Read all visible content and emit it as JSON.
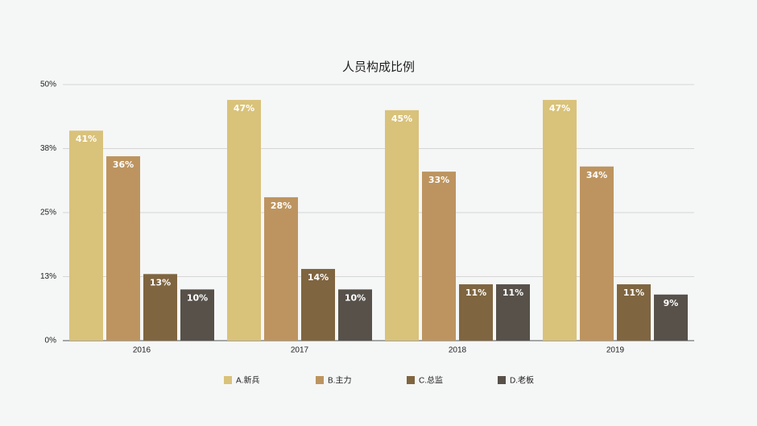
{
  "chart_data": {
    "type": "bar",
    "title": "人员构成比例",
    "categories": [
      "2016",
      "2017",
      "2018",
      "2019"
    ],
    "series": [
      {
        "name": "A.新兵",
        "color": "#d9c27a",
        "values": [
          41,
          47,
          45,
          47
        ],
        "value_labels": [
          "41%",
          "47%",
          "45%",
          "47%"
        ]
      },
      {
        "name": "B.主力",
        "color": "#bd945f",
        "values": [
          36,
          28,
          33,
          34
        ],
        "value_labels": [
          "36%",
          "28%",
          "33%",
          "34%"
        ]
      },
      {
        "name": "C.总监",
        "color": "#7f6540",
        "values": [
          13,
          14,
          11,
          11
        ],
        "value_labels": [
          "13%",
          "14%",
          "11%",
          "11%"
        ]
      },
      {
        "name": "D.老板",
        "color": "#57514a",
        "values": [
          10,
          10,
          11,
          9
        ],
        "value_labels": [
          "10%",
          "10%",
          "11%",
          "9%"
        ]
      }
    ],
    "ylim": [
      0,
      50
    ],
    "yticks": [
      {
        "value": 0,
        "label": "0%"
      },
      {
        "value": 12.5,
        "label": "13%"
      },
      {
        "value": 25,
        "label": "25%"
      },
      {
        "value": 37.5,
        "label": "38%"
      },
      {
        "value": 50,
        "label": "50%"
      }
    ],
    "grid": true,
    "legend": "bottom"
  }
}
